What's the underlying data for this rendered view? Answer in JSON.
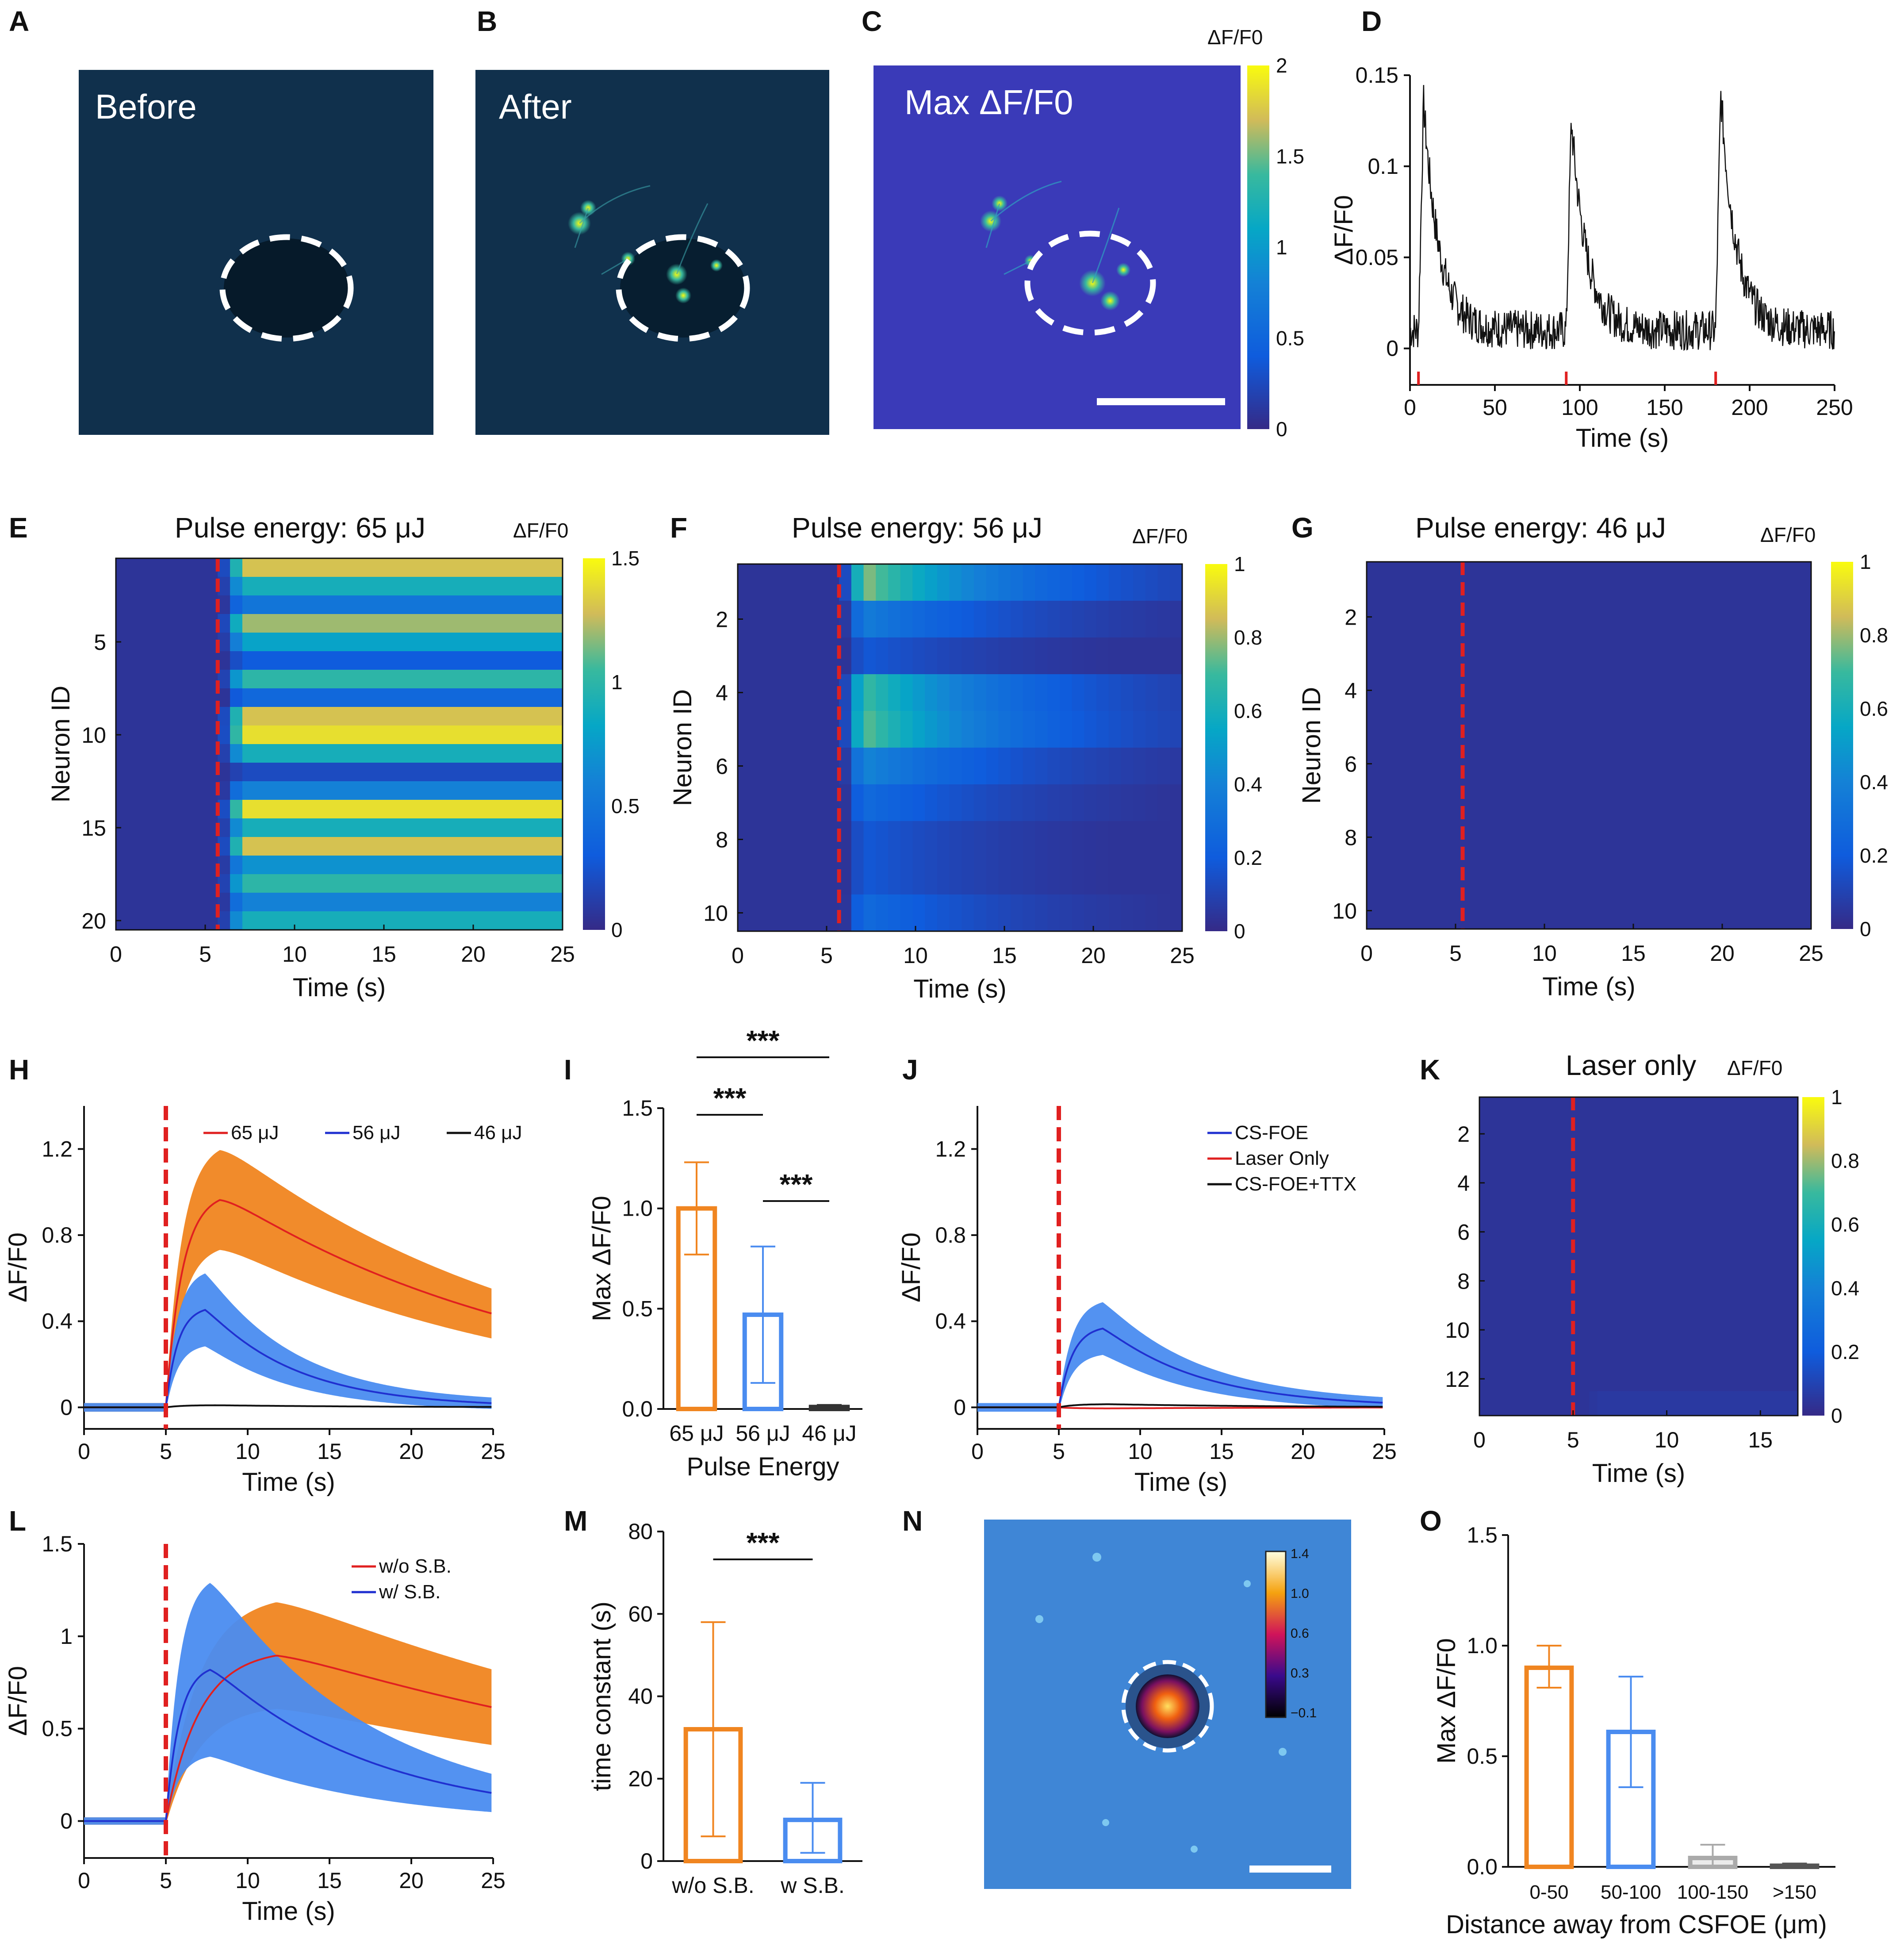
{
  "figure": {
    "panels": {
      "A": {
        "label": "A",
        "title": "Before"
      },
      "B": {
        "label": "B",
        "title": "After"
      },
      "C": {
        "label": "C",
        "title": "Max ΔF/F0",
        "colorbar_label": "ΔF/F0",
        "colorbar_ticks": [
          "0",
          "0.5",
          "1",
          "1.5",
          "2"
        ]
      },
      "D": {
        "label": "D"
      },
      "E": {
        "label": "E",
        "title": "Pulse energy: 65 μJ",
        "colorbar_label": "ΔF/F0",
        "colorbar_ticks": [
          "0",
          "0.5",
          "1",
          "1.5"
        ]
      },
      "F": {
        "label": "F",
        "title": "Pulse energy: 56 μJ",
        "colorbar_label": "ΔF/F0",
        "colorbar_ticks": [
          "0",
          "0.2",
          "0.4",
          "0.6",
          "0.8",
          "1"
        ]
      },
      "G": {
        "label": "G",
        "title": "Pulse energy: 46 μJ",
        "colorbar_label": "ΔF/F0",
        "colorbar_ticks": [
          "0",
          "0.2",
          "0.4",
          "0.6",
          "0.8",
          "1"
        ]
      },
      "H": {
        "label": "H"
      },
      "I": {
        "label": "I"
      },
      "J": {
        "label": "J"
      },
      "K": {
        "label": "K",
        "title": "Laser only",
        "colorbar_label": "ΔF/F0",
        "colorbar_ticks": [
          "0",
          "0.2",
          "0.4",
          "0.6",
          "0.8",
          "1"
        ]
      },
      "L": {
        "label": "L"
      },
      "M": {
        "label": "M"
      },
      "N": {
        "label": "N",
        "colorbar_ticks": [
          "1.4",
          "1.0",
          "0.6",
          "0.3",
          "−0.1"
        ]
      },
      "O": {
        "label": "O"
      }
    }
  },
  "chart_data": [
    {
      "panel": "D",
      "type": "line",
      "xlabel": "Time (s)",
      "ylabel": "ΔF/F0",
      "xlim": [
        0,
        250
      ],
      "ylim": [
        -0.02,
        0.15
      ],
      "xticks": [
        0,
        50,
        100,
        150,
        200,
        250
      ],
      "yticks": [
        0,
        0.05,
        0.1,
        0.15
      ],
      "stim_times": [
        5,
        92,
        180
      ],
      "peaks": [
        0.135,
        0.125,
        0.14
      ],
      "baseline": 0.01
    },
    {
      "panel": "E",
      "type": "heatmap",
      "xlabel": "Time (s)",
      "ylabel": "Neuron ID",
      "xlim": [
        0,
        25
      ],
      "xticks": [
        0,
        5,
        10,
        15,
        20,
        25
      ],
      "yticks": [
        5,
        10,
        15,
        20
      ],
      "rows": 20,
      "stim_time": 5.7,
      "clim": [
        0,
        1.5
      ],
      "row_levels": [
        1.3,
        0.9,
        0.5,
        1.2,
        0.8,
        0.3,
        1.0,
        0.4,
        1.3,
        1.4,
        0.9,
        0.2,
        0.6,
        1.4,
        0.9,
        1.3,
        0.7,
        1.0,
        0.6,
        0.9
      ]
    },
    {
      "panel": "F",
      "type": "heatmap",
      "xlabel": "Time (s)",
      "ylabel": "Neuron ID",
      "xlim": [
        0,
        25
      ],
      "xticks": [
        0,
        5,
        10,
        15,
        20,
        25
      ],
      "yticks": [
        2,
        4,
        6,
        8,
        10
      ],
      "rows": 10,
      "stim_time": 5.7,
      "clim": [
        0,
        1
      ],
      "row_levels": [
        0.85,
        0.4,
        0.2,
        0.75,
        0.8,
        0.45,
        0.3,
        0.2,
        0.2,
        0.3
      ]
    },
    {
      "panel": "G",
      "type": "heatmap",
      "xlabel": "Time (s)",
      "ylabel": "Neuron ID",
      "xlim": [
        0,
        25
      ],
      "xticks": [
        0,
        5,
        10,
        15,
        20,
        25
      ],
      "yticks": [
        2,
        4,
        6,
        8,
        10
      ],
      "rows": 10,
      "stim_time": 5.4,
      "clim": [
        0,
        1
      ],
      "row_levels": [
        0.02,
        0.02,
        0.03,
        0.02,
        0.02,
        0.02,
        0.02,
        0.02,
        0.02,
        0.02
      ]
    },
    {
      "panel": "H",
      "type": "line",
      "xlabel": "Time (s)",
      "ylabel": "ΔF/F0",
      "xlim": [
        0,
        25
      ],
      "ylim": [
        -0.1,
        1.4
      ],
      "xticks": [
        0,
        5,
        10,
        15,
        20,
        25
      ],
      "yticks": [
        0,
        0.4,
        0.8,
        1.2
      ],
      "stim_time": 5,
      "series": [
        {
          "name": "65 μJ",
          "color": "#e02020",
          "band": "#f08520",
          "amp": 1.0,
          "tau": 20,
          "rise": 2.2,
          "spread": 0.22
        },
        {
          "name": "56 μJ",
          "color": "#2030d0",
          "band": "#4a8cf0",
          "amp": 0.47,
          "tau": 5.5,
          "rise": 1.6,
          "spread": 0.33
        },
        {
          "name": "46 μJ",
          "color": "#111111",
          "band": null,
          "amp": 0.01,
          "tau": 10,
          "rise": 2,
          "spread": 0
        }
      ]
    },
    {
      "panel": "I",
      "type": "bar",
      "categories": [
        "65 μJ",
        "56 μJ",
        "46 μJ"
      ],
      "values": [
        1.0,
        0.47,
        0.01
      ],
      "err_low": [
        0.77,
        0.13,
        0.0
      ],
      "err_high": [
        1.23,
        0.81,
        0.02
      ],
      "colors": [
        "#f08520",
        "#4a8cf0",
        "#333333"
      ],
      "xlabel": "Pulse Energy",
      "ylabel": "Max ΔF/F0",
      "ylim": [
        0,
        1.5
      ],
      "yticks": [
        0.0,
        0.5,
        1.0,
        1.5
      ],
      "significance": [
        {
          "pair": [
            0,
            1
          ],
          "label": "***"
        },
        {
          "pair": [
            1,
            2
          ],
          "label": "***"
        },
        {
          "pair": [
            0,
            2
          ],
          "label": "***"
        }
      ]
    },
    {
      "panel": "J",
      "type": "line",
      "xlabel": "Time (s)",
      "ylabel": "ΔF/F0",
      "xlim": [
        0,
        25
      ],
      "ylim": [
        -0.1,
        1.4
      ],
      "xticks": [
        0,
        5,
        10,
        15,
        20,
        25
      ],
      "yticks": [
        0,
        0.4,
        0.8,
        1.2
      ],
      "stim_time": 5,
      "series": [
        {
          "name": "CS-FOE",
          "color": "#2030d0",
          "band": "#4a8cf0",
          "amp": 0.38,
          "tau": 6,
          "rise": 1.8,
          "spread": 0.28
        },
        {
          "name": "Laser Only",
          "color": "#e02020",
          "band": null,
          "amp": -0.005,
          "tau": 10,
          "rise": 2,
          "spread": 0
        },
        {
          "name": "CS-FOE+TTX",
          "color": "#111111",
          "band": null,
          "amp": 0.015,
          "tau": 10,
          "rise": 2,
          "spread": 0
        }
      ]
    },
    {
      "panel": "K",
      "type": "heatmap",
      "xlabel": "Time (s)",
      "xlim": [
        0,
        17
      ],
      "xticks": [
        0,
        5,
        10,
        15
      ],
      "yticks": [
        2,
        4,
        6,
        8,
        10,
        12
      ],
      "rows": 13,
      "stim_time": 5,
      "clim": [
        0,
        1
      ],
      "row_levels": [
        0.02,
        0.02,
        0.02,
        0.02,
        0.02,
        0.02,
        0.03,
        0.02,
        0.02,
        0.02,
        0.02,
        0.02,
        0.06
      ]
    },
    {
      "panel": "L",
      "type": "line",
      "xlabel": "Time (s)",
      "ylabel": "ΔF/F0",
      "xlim": [
        0,
        25
      ],
      "ylim": [
        -0.2,
        1.5
      ],
      "xticks": [
        0,
        5,
        10,
        15,
        20,
        25
      ],
      "yticks": [
        0,
        0.5,
        1,
        1.5
      ],
      "stim_time": 5,
      "series": [
        {
          "name": "w/o S.B.",
          "color": "#e02020",
          "band": "#f08520",
          "amp": 0.93,
          "tau": 32,
          "rise": 4.5,
          "spread": 0.3
        },
        {
          "name": "w/ S.B.",
          "color": "#2030d0",
          "band": "#4a8cf0",
          "amp": 0.85,
          "tau": 10,
          "rise": 1.8,
          "spread": 0.55
        }
      ]
    },
    {
      "panel": "M",
      "type": "bar",
      "categories": [
        "w/o S.B.",
        "w S.B."
      ],
      "values": [
        32,
        10
      ],
      "err_low": [
        6,
        2
      ],
      "err_high": [
        58,
        19
      ],
      "colors": [
        "#f08520",
        "#4a8cf0"
      ],
      "ylabel": "time constant (s)",
      "ylim": [
        0,
        80
      ],
      "yticks": [
        0,
        20,
        40,
        60,
        80
      ],
      "significance": [
        {
          "pair": [
            0,
            1
          ],
          "label": "***"
        }
      ]
    },
    {
      "panel": "O",
      "type": "bar",
      "categories": [
        "0-50",
        "50-100",
        "100-150",
        ">150"
      ],
      "values": [
        0.9,
        0.61,
        0.04,
        0.005
      ],
      "err_low": [
        0.81,
        0.36,
        0.0,
        0.0
      ],
      "err_high": [
        1.0,
        0.86,
        0.1,
        0.015
      ],
      "colors": [
        "#f08520",
        "#4a8cf0",
        "#aaaaaa",
        "#555555"
      ],
      "xlabel": "Distance away from CSFOE (μm)",
      "ylabel": "Max ΔF/F0",
      "ylim": [
        0,
        1.5
      ],
      "yticks": [
        0.0,
        0.5,
        1.0,
        1.5
      ]
    }
  ]
}
